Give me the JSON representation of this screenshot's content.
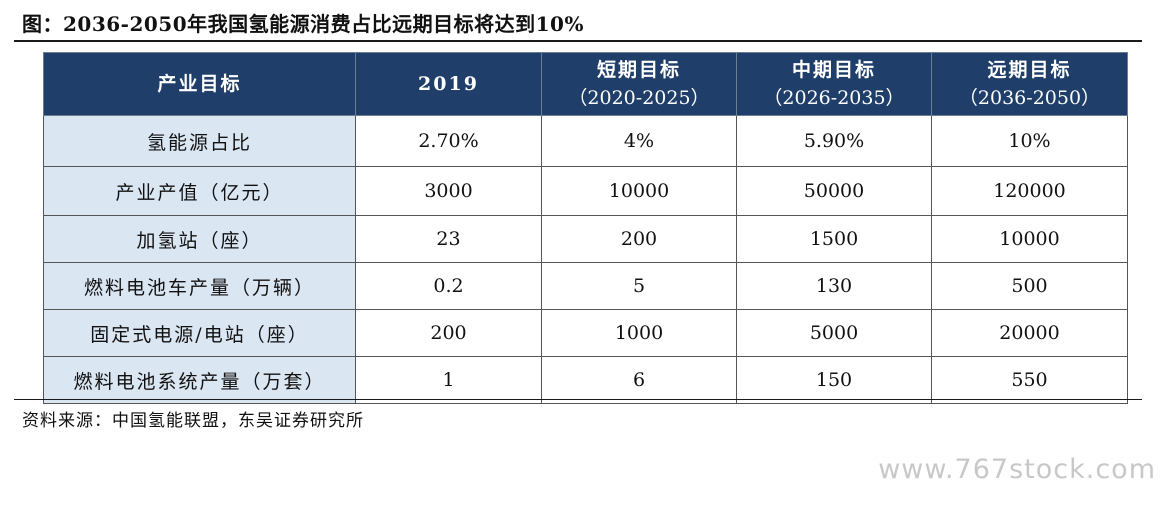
{
  "title": "图：2036-2050年我国氢能源消费占比远期目标将达到10%",
  "table": {
    "headers": [
      {
        "main": "产业目标",
        "sub": ""
      },
      {
        "main": "2019",
        "sub": ""
      },
      {
        "main": "短期目标",
        "sub": "（2020-2025）"
      },
      {
        "main": "中期目标",
        "sub": "（2026-2035）"
      },
      {
        "main": "远期目标",
        "sub": "（2036-2050）"
      }
    ],
    "rows": [
      [
        "氢能源占比",
        "2.70%",
        "4%",
        "5.90%",
        "10%"
      ],
      [
        "产业产值（亿元）",
        "3000",
        "10000",
        "50000",
        "120000"
      ],
      [
        "加氢站（座）",
        "23",
        "200",
        "1500",
        "10000"
      ],
      [
        "燃料电池车产量（万辆）",
        "0.2",
        "5",
        "130",
        "500"
      ],
      [
        "固定式电源/电站（座）",
        "200",
        "1000",
        "5000",
        "20000"
      ],
      [
        "燃料电池系统产量（万套）",
        "1",
        "6",
        "150",
        "550"
      ]
    ]
  },
  "source": "资料来源：中国氢能联盟，东吴证券研究所",
  "watermark": "www.767stock.com"
}
